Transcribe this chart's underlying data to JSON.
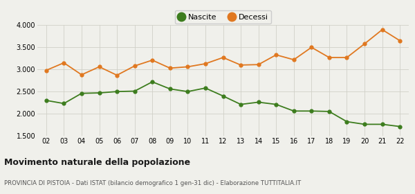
{
  "years": [
    "02",
    "03",
    "04",
    "05",
    "06",
    "07",
    "08",
    "09",
    "10",
    "11",
    "12",
    "13",
    "14",
    "15",
    "16",
    "17",
    "18",
    "19",
    "20",
    "21",
    "22"
  ],
  "nascite": [
    2300,
    2230,
    2460,
    2470,
    2500,
    2510,
    2720,
    2560,
    2500,
    2580,
    2400,
    2210,
    2260,
    2210,
    2060,
    2060,
    2050,
    1820,
    1760,
    1760,
    1710
  ],
  "decessi": [
    2980,
    3150,
    2880,
    3060,
    2870,
    3080,
    3210,
    3030,
    3060,
    3130,
    3270,
    3100,
    3110,
    3330,
    3220,
    3500,
    3270,
    3270,
    3580,
    3900,
    3650
  ],
  "nascite_color": "#3d7d1e",
  "decessi_color": "#e07820",
  "background_color": "#f0f0eb",
  "grid_color": "#d0d0c8",
  "ylim": [
    1500,
    4000
  ],
  "yticks": [
    1500,
    2000,
    2500,
    3000,
    3500,
    4000
  ],
  "title": "Movimento naturale della popolazione",
  "subtitle": "PROVINCIA DI PISTOIA - Dati ISTAT (bilancio demografico 1 gen-31 dic) - Elaborazione TUTTITALIA.IT",
  "legend_nascite": "Nascite",
  "legend_decessi": "Decessi"
}
